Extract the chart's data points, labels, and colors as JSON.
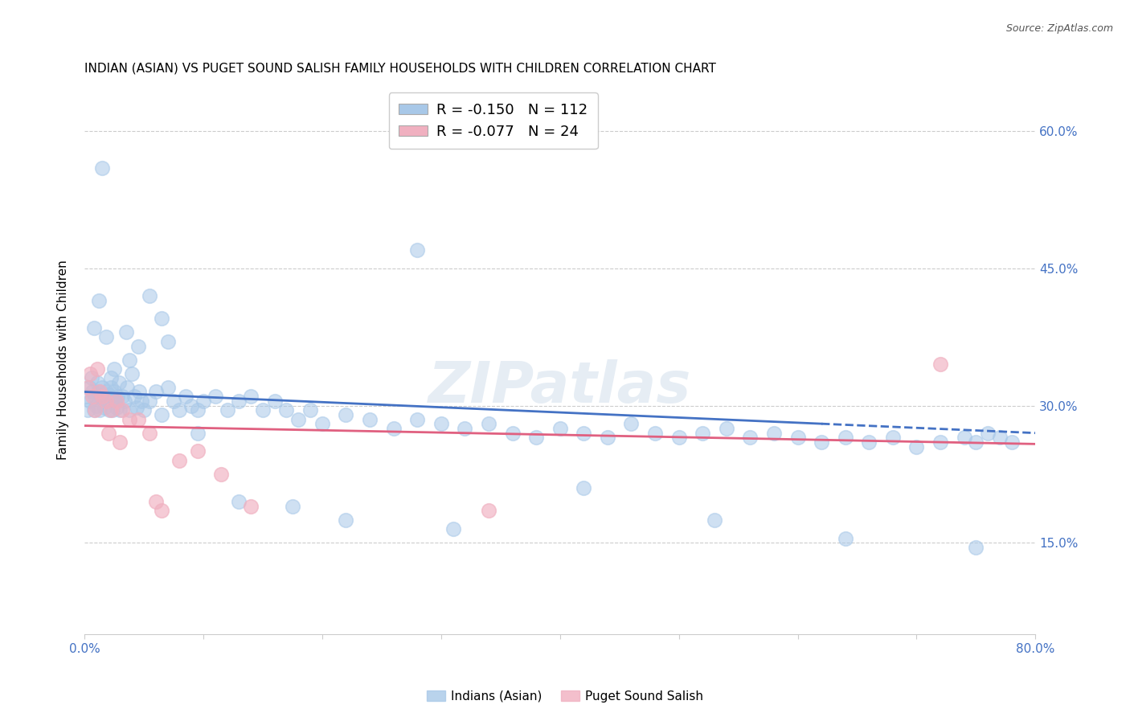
{
  "title": "INDIAN (ASIAN) VS PUGET SOUND SALISH FAMILY HOUSEHOLDS WITH CHILDREN CORRELATION CHART",
  "source": "Source: ZipAtlas.com",
  "ylabel": "Family Households with Children",
  "xlim": [
    0,
    0.8
  ],
  "ylim": [
    0.05,
    0.65
  ],
  "x_ticks": [
    0.0,
    0.1,
    0.2,
    0.3,
    0.4,
    0.5,
    0.6,
    0.7,
    0.8
  ],
  "y_ticks": [
    0.15,
    0.3,
    0.45,
    0.6
  ],
  "grid_color": "#cccccc",
  "background_color": "#ffffff",
  "blue_color": "#a8c8e8",
  "pink_color": "#f0b0c0",
  "blue_line_color": "#4472c4",
  "pink_line_color": "#e06080",
  "legend_R_blue": "-0.150",
  "legend_N_blue": "112",
  "legend_R_pink": "-0.077",
  "legend_N_pink": "24",
  "watermark": "ZIPatlas",
  "blue_scatter_x": [
    0.002,
    0.003,
    0.004,
    0.005,
    0.006,
    0.007,
    0.008,
    0.009,
    0.01,
    0.011,
    0.012,
    0.013,
    0.014,
    0.015,
    0.016,
    0.017,
    0.018,
    0.019,
    0.02,
    0.021,
    0.022,
    0.023,
    0.024,
    0.025,
    0.026,
    0.027,
    0.028,
    0.029,
    0.03,
    0.032,
    0.034,
    0.036,
    0.038,
    0.04,
    0.042,
    0.044,
    0.046,
    0.048,
    0.05,
    0.055,
    0.06,
    0.065,
    0.07,
    0.075,
    0.08,
    0.085,
    0.09,
    0.095,
    0.1,
    0.11,
    0.12,
    0.13,
    0.14,
    0.15,
    0.16,
    0.17,
    0.18,
    0.19,
    0.2,
    0.22,
    0.24,
    0.26,
    0.28,
    0.3,
    0.32,
    0.34,
    0.36,
    0.38,
    0.4,
    0.42,
    0.44,
    0.46,
    0.48,
    0.5,
    0.52,
    0.54,
    0.56,
    0.58,
    0.6,
    0.62,
    0.64,
    0.66,
    0.68,
    0.7,
    0.72,
    0.74,
    0.75,
    0.76,
    0.77,
    0.78,
    0.008,
    0.012,
    0.018,
    0.025,
    0.035,
    0.045,
    0.055,
    0.065,
    0.28,
    0.015,
    0.022,
    0.038,
    0.07,
    0.095,
    0.13,
    0.175,
    0.22,
    0.31,
    0.42,
    0.53,
    0.64,
    0.75
  ],
  "blue_scatter_y": [
    0.31,
    0.295,
    0.32,
    0.305,
    0.33,
    0.315,
    0.295,
    0.31,
    0.3,
    0.325,
    0.315,
    0.295,
    0.308,
    0.32,
    0.31,
    0.298,
    0.315,
    0.305,
    0.312,
    0.295,
    0.32,
    0.308,
    0.295,
    0.315,
    0.305,
    0.298,
    0.31,
    0.325,
    0.295,
    0.31,
    0.305,
    0.32,
    0.295,
    0.335,
    0.31,
    0.298,
    0.315,
    0.305,
    0.295,
    0.305,
    0.315,
    0.29,
    0.32,
    0.305,
    0.295,
    0.31,
    0.3,
    0.295,
    0.305,
    0.31,
    0.295,
    0.305,
    0.31,
    0.295,
    0.305,
    0.295,
    0.285,
    0.295,
    0.28,
    0.29,
    0.285,
    0.275,
    0.285,
    0.28,
    0.275,
    0.28,
    0.27,
    0.265,
    0.275,
    0.27,
    0.265,
    0.28,
    0.27,
    0.265,
    0.27,
    0.275,
    0.265,
    0.27,
    0.265,
    0.26,
    0.265,
    0.26,
    0.265,
    0.255,
    0.26,
    0.265,
    0.26,
    0.27,
    0.265,
    0.26,
    0.385,
    0.415,
    0.375,
    0.34,
    0.38,
    0.365,
    0.42,
    0.395,
    0.47,
    0.56,
    0.33,
    0.35,
    0.37,
    0.27,
    0.195,
    0.19,
    0.175,
    0.165,
    0.21,
    0.175,
    0.155,
    0.145
  ],
  "pink_scatter_x": [
    0.003,
    0.005,
    0.007,
    0.009,
    0.011,
    0.013,
    0.015,
    0.018,
    0.022,
    0.027,
    0.032,
    0.038,
    0.045,
    0.055,
    0.065,
    0.08,
    0.095,
    0.115,
    0.14,
    0.06,
    0.03,
    0.02,
    0.34,
    0.72
  ],
  "pink_scatter_y": [
    0.32,
    0.335,
    0.31,
    0.295,
    0.34,
    0.315,
    0.31,
    0.305,
    0.295,
    0.305,
    0.295,
    0.285,
    0.285,
    0.27,
    0.185,
    0.24,
    0.25,
    0.225,
    0.19,
    0.195,
    0.26,
    0.27,
    0.185,
    0.345
  ],
  "blue_line_y_start": 0.315,
  "blue_line_y_mid": 0.292,
  "blue_line_y_end": 0.27,
  "blue_line_solid_end": 0.62,
  "pink_line_y_start": 0.278,
  "pink_line_y_end": 0.258,
  "title_fontsize": 11,
  "axis_label_fontsize": 11,
  "tick_fontsize": 11,
  "legend_fontsize": 13
}
